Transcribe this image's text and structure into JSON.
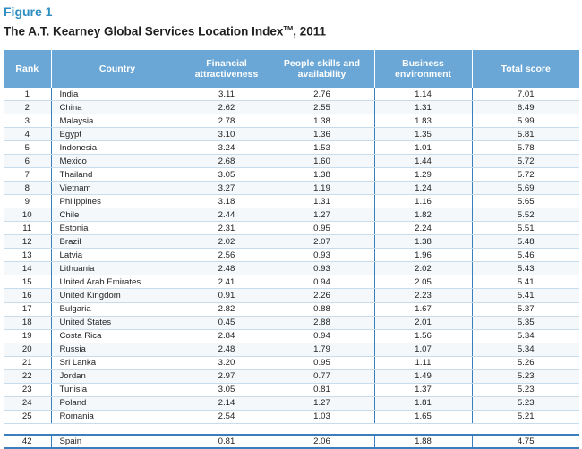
{
  "figure_label": "Figure 1",
  "title": "The A.T. Kearney Global Services Location Index",
  "title_tm": "TM",
  "title_year": ", 2011",
  "columns": [
    "Rank",
    "Country",
    "Financial attractiveness",
    "People skills and availability",
    "Business environment",
    "Total score"
  ],
  "rows": [
    {
      "rank": "1",
      "country": "India",
      "financial": "3.11",
      "people": "2.76",
      "business": "1.14",
      "total": "7.01"
    },
    {
      "rank": "2",
      "country": "China",
      "financial": "2.62",
      "people": "2.55",
      "business": "1.31",
      "total": "6.49"
    },
    {
      "rank": "3",
      "country": "Malaysia",
      "financial": "2.78",
      "people": "1.38",
      "business": "1.83",
      "total": "5.99"
    },
    {
      "rank": "4",
      "country": "Egypt",
      "financial": "3.10",
      "people": "1.36",
      "business": "1.35",
      "total": "5.81"
    },
    {
      "rank": "5",
      "country": "Indonesia",
      "financial": "3.24",
      "people": "1.53",
      "business": "1.01",
      "total": "5.78"
    },
    {
      "rank": "6",
      "country": "Mexico",
      "financial": "2.68",
      "people": "1.60",
      "business": "1.44",
      "total": "5.72"
    },
    {
      "rank": "7",
      "country": "Thailand",
      "financial": "3.05",
      "people": "1.38",
      "business": "1.29",
      "total": "5.72"
    },
    {
      "rank": "8",
      "country": "Vietnam",
      "financial": "3.27",
      "people": "1.19",
      "business": "1.24",
      "total": "5.69"
    },
    {
      "rank": "9",
      "country": "Philippines",
      "financial": "3.18",
      "people": "1.31",
      "business": "1.16",
      "total": "5.65"
    },
    {
      "rank": "10",
      "country": "Chile",
      "financial": "2.44",
      "people": "1.27",
      "business": "1.82",
      "total": "5.52"
    },
    {
      "rank": "11",
      "country": "Estonia",
      "financial": "2.31",
      "people": "0.95",
      "business": "2.24",
      "total": "5.51"
    },
    {
      "rank": "12",
      "country": "Brazil",
      "financial": "2.02",
      "people": "2.07",
      "business": "1.38",
      "total": "5.48"
    },
    {
      "rank": "13",
      "country": "Latvia",
      "financial": "2.56",
      "people": "0.93",
      "business": "1.96",
      "total": "5.46"
    },
    {
      "rank": "14",
      "country": "Lithuania",
      "financial": "2.48",
      "people": "0.93",
      "business": "2.02",
      "total": "5.43"
    },
    {
      "rank": "15",
      "country": "United Arab Emirates",
      "financial": "2.41",
      "people": "0.94",
      "business": "2.05",
      "total": "5.41"
    },
    {
      "rank": "16",
      "country": "United Kingdom",
      "financial": "0.91",
      "people": "2.26",
      "business": "2.23",
      "total": "5.41"
    },
    {
      "rank": "17",
      "country": "Bulgaria",
      "financial": "2.82",
      "people": "0.88",
      "business": "1.67",
      "total": "5.37"
    },
    {
      "rank": "18",
      "country": "United States",
      "financial": "0.45",
      "people": "2.88",
      "business": "2.01",
      "total": "5.35"
    },
    {
      "rank": "19",
      "country": "Costa Rica",
      "financial": "2.84",
      "people": "0.94",
      "business": "1.56",
      "total": "5.34"
    },
    {
      "rank": "20",
      "country": "Russia",
      "financial": "2.48",
      "people": "1.79",
      "business": "1.07",
      "total": "5.34"
    },
    {
      "rank": "21",
      "country": "Sri Lanka",
      "financial": "3.20",
      "people": "0.95",
      "business": "1.11",
      "total": "5.26"
    },
    {
      "rank": "22",
      "country": "Jordan",
      "financial": "2.97",
      "people": "0.77",
      "business": "1.49",
      "total": "5.23"
    },
    {
      "rank": "23",
      "country": "Tunisia",
      "financial": "3.05",
      "people": "0.81",
      "business": "1.37",
      "total": "5.23"
    },
    {
      "rank": "24",
      "country": "Poland",
      "financial": "2.14",
      "people": "1.27",
      "business": "1.81",
      "total": "5.23"
    },
    {
      "rank": "25",
      "country": "Romania",
      "financial": "2.54",
      "people": "1.03",
      "business": "1.65",
      "total": "5.21"
    }
  ],
  "extra_row": {
    "rank": "42",
    "country": "Spain",
    "financial": "0.81",
    "people": "2.06",
    "business": "1.88",
    "total": "4.75"
  }
}
